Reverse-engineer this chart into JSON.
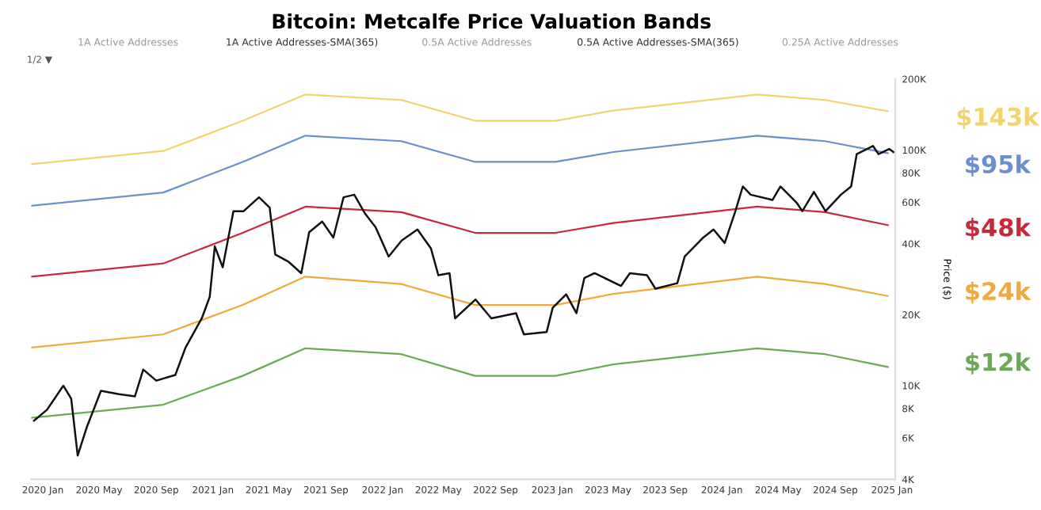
{
  "chart_data": {
    "type": "line",
    "title": "Bitcoin: Metcalfe Price Valuation Bands",
    "ylabel": "Price ($)",
    "x": [
      "2019-12-07",
      "2020-09-16",
      "2021-03-06",
      "2021-07-19",
      "2022-02-10",
      "2022-07-19",
      "2023-01-08",
      "2023-05-12",
      "2024-03-17",
      "2024-08-10",
      "2024-12-23"
    ],
    "series": [
      {
        "color": "#f2d46e",
        "values": [
          87000,
          99000,
          133000,
          172000,
          163000,
          133000,
          133000,
          147000,
          172000,
          163000,
          146000
        ]
      },
      {
        "color": "#6a8fd0",
        "values": [
          58000,
          66000,
          89000,
          115000,
          109000,
          89000,
          89000,
          98000,
          115000,
          109000,
          97000
        ]
      },
      {
        "color": "#c8283c",
        "values": [
          29000,
          33000,
          44500,
          57500,
          54500,
          44500,
          44500,
          49000,
          57500,
          54500,
          48000
        ]
      },
      {
        "color": "#f0a93a",
        "values": [
          14500,
          16500,
          22000,
          29000,
          27000,
          22000,
          22000,
          24500,
          29000,
          27000,
          24000
        ]
      },
      {
        "color": "#6aaa55",
        "values": [
          7300,
          8300,
          11000,
          14400,
          13600,
          11000,
          11000,
          12300,
          14400,
          13600,
          12000
        ]
      },
      {
        "color": "#111111",
        "x": [
          "2019-12-13",
          "2020-01-10",
          "2020-02-14",
          "2020-03-02",
          "2020-03-16",
          "2020-04-05",
          "2020-05-05",
          "2020-06-13",
          "2020-07-17",
          "2020-08-04",
          "2020-09-01",
          "2020-10-12",
          "2020-11-03",
          "2020-12-08",
          "2020-12-25",
          "2021-01-05",
          "2021-01-22",
          "2021-02-14",
          "2021-03-08",
          "2021-04-10",
          "2021-05-03",
          "2021-05-15",
          "2021-06-13",
          "2021-07-10",
          "2021-07-27",
          "2021-08-24",
          "2021-09-17",
          "2021-10-09",
          "2021-11-01",
          "2021-11-24",
          "2021-12-17",
          "2022-01-14",
          "2022-02-11",
          "2022-03-17",
          "2022-04-15",
          "2022-05-01",
          "2022-05-25",
          "2022-06-06",
          "2022-07-20",
          "2022-08-23",
          "2022-10-15",
          "2022-11-01",
          "2022-12-20",
          "2023-01-02",
          "2023-01-31",
          "2023-02-22",
          "2023-03-11",
          "2023-04-02",
          "2023-05-29",
          "2023-06-17",
          "2023-07-24",
          "2023-08-11",
          "2023-09-27",
          "2023-10-13",
          "2023-11-22",
          "2023-12-14",
          "2024-01-07",
          "2024-01-30",
          "2024-02-15",
          "2024-03-03",
          "2024-04-19",
          "2024-05-06",
          "2024-06-10",
          "2024-06-22",
          "2024-07-17",
          "2024-08-11",
          "2024-09-13",
          "2024-10-05",
          "2024-10-17",
          "2024-11-21",
          "2024-12-03",
          "2024-12-26",
          "2025-01-04"
        ],
        "values": [
          7100,
          7900,
          10000,
          8800,
          5050,
          6700,
          9500,
          9200,
          9000,
          11700,
          10500,
          11100,
          14500,
          19300,
          23800,
          39000,
          31800,
          55000,
          55000,
          63000,
          57000,
          36000,
          33500,
          30000,
          44800,
          49700,
          42500,
          63000,
          64600,
          53800,
          47000,
          35300,
          41300,
          46000,
          38200,
          29400,
          30000,
          19300,
          23200,
          19300,
          20300,
          16500,
          16900,
          21400,
          24400,
          20300,
          28600,
          30000,
          26500,
          30000,
          29400,
          25800,
          27200,
          35300,
          42500,
          46000,
          40300,
          55000,
          70000,
          64600,
          61400,
          70000,
          59700,
          55000,
          66400,
          55000,
          64600,
          70000,
          96000,
          104000,
          96000,
          101000,
          98000
        ]
      }
    ],
    "log": true,
    "xlim": [
      "2019-12-07",
      "2025-01-08"
    ],
    "ylim": [
      4000,
      200000
    ],
    "xticks": [
      {
        "value": "2020-01-01",
        "label": "2020 Jan"
      },
      {
        "value": "2020-05-01",
        "label": "2020 May"
      },
      {
        "value": "2020-09-01",
        "label": "2020 Sep"
      },
      {
        "value": "2021-01-01",
        "label": "2021 Jan"
      },
      {
        "value": "2021-05-01",
        "label": "2021 May"
      },
      {
        "value": "2021-09-01",
        "label": "2021 Sep"
      },
      {
        "value": "2022-01-01",
        "label": "2022 Jan"
      },
      {
        "value": "2022-05-01",
        "label": "2022 May"
      },
      {
        "value": "2022-09-01",
        "label": "2022 Sep"
      },
      {
        "value": "2023-01-01",
        "label": "2023 Jan"
      },
      {
        "value": "2023-05-01",
        "label": "2023 May"
      },
      {
        "value": "2023-09-01",
        "label": "2023 Sep"
      },
      {
        "value": "2024-01-01",
        "label": "2024 Jan"
      },
      {
        "value": "2024-05-01",
        "label": "2024 May"
      },
      {
        "value": "2024-09-01",
        "label": "2024 Sep"
      },
      {
        "value": "2025-01-01",
        "label": "2025 Jan"
      }
    ],
    "yticks": [
      {
        "value": 4000,
        "label": "4K"
      },
      {
        "value": 6000,
        "label": "6K"
      },
      {
        "value": 8000,
        "label": "8K"
      },
      {
        "value": 10000,
        "label": "10K"
      },
      {
        "value": 20000,
        "label": "20K"
      },
      {
        "value": 40000,
        "label": "40K"
      },
      {
        "value": 60000,
        "label": "60K"
      },
      {
        "value": 80000,
        "label": "80K"
      },
      {
        "value": 100000,
        "label": "100K"
      },
      {
        "value": 200000,
        "label": "200K"
      }
    ],
    "grid": false,
    "legend": false,
    "annotations": [
      "1A Active Addresses",
      "1A Active Addresses-SMA(365)",
      "0.5A Active Addresses",
      "0.5A Active Addresses-SMA(365)",
      "0.25A Active Addresses",
      "1/2 ▼",
      "$143k",
      "$95k",
      "$48k",
      "$24k",
      "$12k"
    ]
  }
}
